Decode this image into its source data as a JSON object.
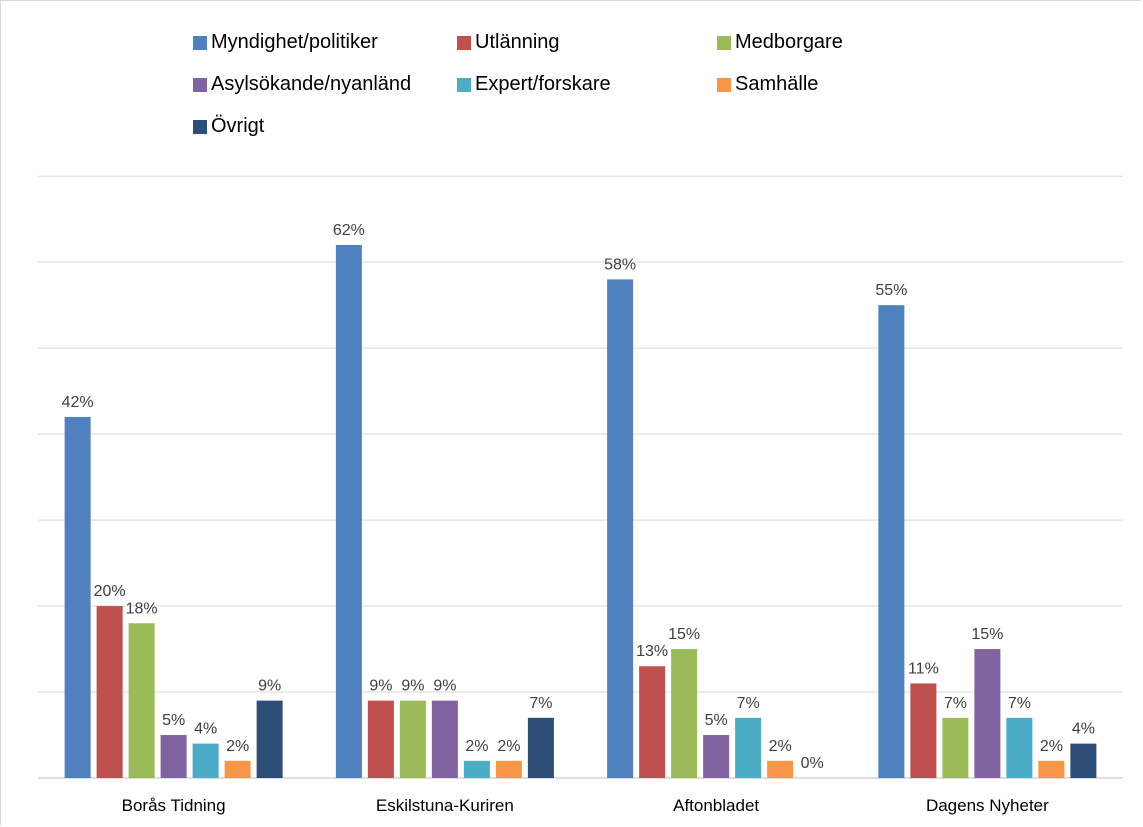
{
  "chart_data": {
    "type": "bar",
    "categories": [
      "Borås Tidning",
      "Eskilstuna-Kuriren",
      "Aftonbladet",
      "Dagens Nyheter"
    ],
    "series": [
      {
        "name": "Myndighet/politiker",
        "color": "#4e81bd",
        "values": [
          42,
          62,
          58,
          55
        ],
        "labels": [
          "42%",
          "62%",
          "58%",
          "55%"
        ]
      },
      {
        "name": "Utlänning",
        "color": "#c0504d",
        "values": [
          20,
          9,
          13,
          11
        ],
        "labels": [
          "20%",
          "9%",
          "13%",
          "11%"
        ]
      },
      {
        "name": "Medborgare",
        "color": "#9bbb59",
        "values": [
          18,
          9,
          15,
          7
        ],
        "labels": [
          "18%",
          "9%",
          "15%",
          "7%"
        ]
      },
      {
        "name": "Asylsökande/nyanländ",
        "color": "#8064a2",
        "values": [
          5,
          9,
          5,
          15
        ],
        "labels": [
          "5%",
          "9%",
          "5%",
          "15%"
        ]
      },
      {
        "name": "Expert/forskare",
        "color": "#4bacc6",
        "values": [
          4,
          2,
          7,
          7
        ],
        "labels": [
          "4%",
          "2%",
          "7%",
          "7%"
        ]
      },
      {
        "name": "Samhälle",
        "color": "#f79646",
        "values": [
          2,
          2,
          2,
          2
        ],
        "labels": [
          "2%",
          "2%",
          "2%",
          "2%"
        ]
      },
      {
        "name": "Övrigt",
        "color": "#2c4d75",
        "values": [
          9,
          7,
          0,
          4
        ],
        "labels": [
          "9%",
          "7%",
          "0%",
          "4%"
        ]
      }
    ],
    "ylim": [
      0,
      70
    ],
    "gridlines": true,
    "legend_position": "top"
  }
}
